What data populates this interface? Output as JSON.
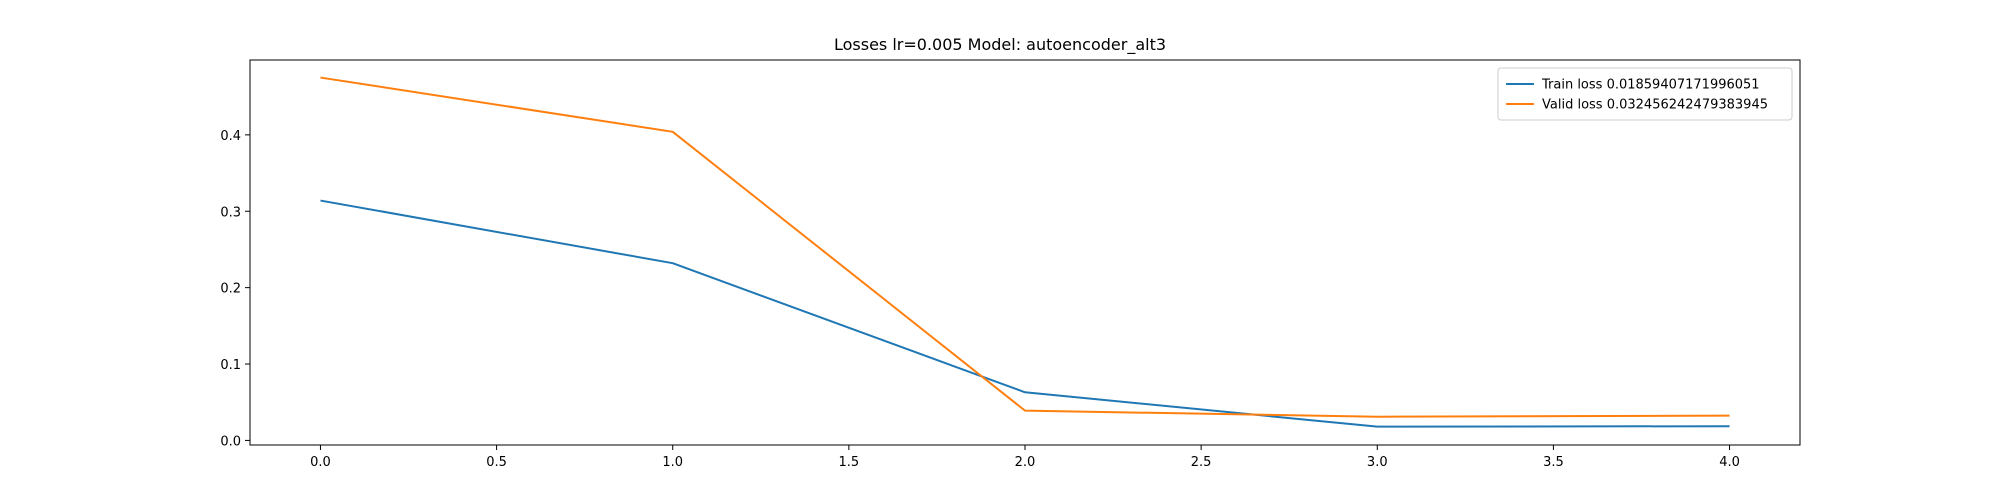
{
  "chart_data": {
    "type": "line",
    "title": "Losses lr=0.005 Model: autoencoder_alt3",
    "xlabel": "",
    "ylabel": "",
    "xlim": [
      -0.2,
      4.2
    ],
    "ylim": [
      -0.006,
      0.498
    ],
    "xticks": [
      0.0,
      0.5,
      1.0,
      1.5,
      2.0,
      2.5,
      3.0,
      3.5,
      4.0
    ],
    "yticks": [
      0.0,
      0.1,
      0.2,
      0.3,
      0.4
    ],
    "grid": false,
    "legend_position": "top-right",
    "series": [
      {
        "name": "Train loss 0.01859407171996051",
        "color": "#1f77b4",
        "x": [
          0,
          1,
          2,
          3,
          4
        ],
        "y": [
          0.314,
          0.232,
          0.063,
          0.018,
          0.0186
        ]
      },
      {
        "name": "Valid loss 0.032456242479383945",
        "color": "#ff7f0e",
        "x": [
          0,
          1,
          2,
          3,
          4
        ],
        "y": [
          0.475,
          0.404,
          0.039,
          0.031,
          0.0325
        ]
      }
    ]
  }
}
